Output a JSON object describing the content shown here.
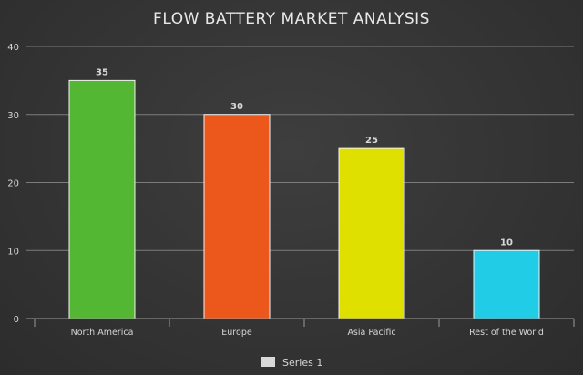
{
  "chart_data": {
    "type": "bar",
    "title": "FLOW BATTERY MARKET ANALYSIS",
    "categories": [
      "North America",
      "Europe",
      "Asia Pacific",
      "Rest of the World"
    ],
    "series": [
      {
        "name": "Series 1",
        "values": [
          35,
          30,
          25,
          10
        ]
      }
    ],
    "bar_colors": [
      "#54b733",
      "#ec571c",
      "#dfe000",
      "#21cce6"
    ],
    "ylim": [
      0,
      40
    ],
    "yticks": [
      0,
      10,
      20,
      30,
      40
    ],
    "grid": true,
    "legend_position": "bottom",
    "legend_swatch_color": "#d9d9d9",
    "data_labels": true
  }
}
